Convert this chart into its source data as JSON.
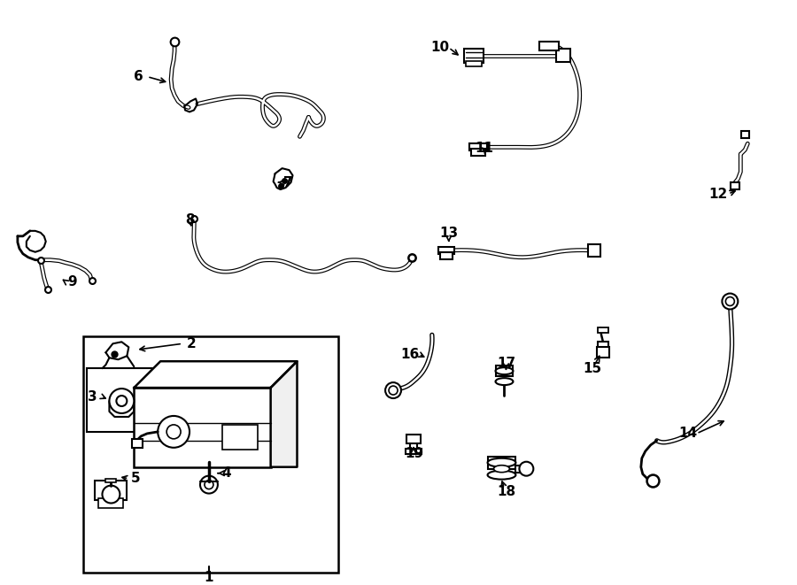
{
  "background_color": "#ffffff",
  "line_color": "#000000",
  "text_color": "#000000",
  "fig_width": 9.0,
  "fig_height": 6.61,
  "dpi": 100
}
